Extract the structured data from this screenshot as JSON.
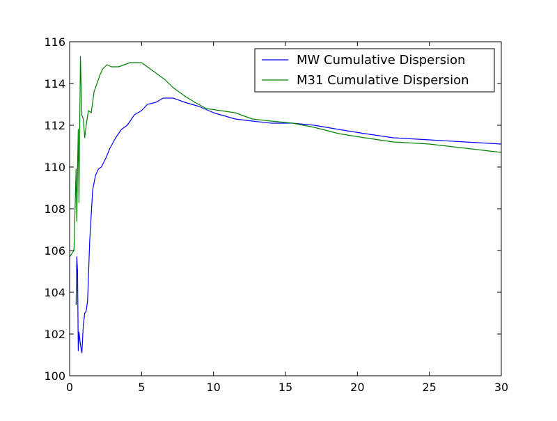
{
  "chart_data": {
    "type": "line",
    "title": "",
    "xlabel": "",
    "ylabel": "",
    "xlim": [
      0,
      30
    ],
    "ylim": [
      100,
      116
    ],
    "xticks": [
      0,
      5,
      10,
      15,
      20,
      25,
      30
    ],
    "yticks": [
      100,
      102,
      104,
      106,
      108,
      110,
      112,
      114,
      116
    ],
    "grid": false,
    "legend_position": "top-right",
    "series": [
      {
        "name": "MW Cumulative Dispersion",
        "color": "#0000ff",
        "x": [
          0.45,
          0.5,
          0.55,
          0.6,
          0.65,
          0.75,
          0.85,
          0.95,
          1.05,
          1.15,
          1.25,
          1.4,
          1.6,
          1.8,
          2.0,
          2.2,
          2.5,
          2.8,
          3.2,
          3.6,
          4.0,
          4.5,
          5.0,
          5.4,
          6.0,
          6.5,
          7.2,
          8.0,
          9.0,
          10.0,
          10.5,
          11.5,
          12.7,
          14.0,
          15.5,
          17.0,
          18.7,
          20.5,
          22.5,
          25.0,
          27.5,
          30.0
        ],
        "y": [
          103.4,
          105.7,
          105.0,
          101.2,
          102.1,
          101.5,
          101.1,
          102.4,
          103.0,
          103.1,
          103.6,
          106.5,
          108.9,
          109.6,
          109.9,
          110.0,
          110.4,
          110.9,
          111.4,
          111.8,
          112.0,
          112.5,
          112.7,
          113.0,
          113.1,
          113.3,
          113.3,
          113.1,
          112.9,
          112.6,
          112.5,
          112.3,
          112.2,
          112.1,
          112.1,
          112.0,
          111.8,
          111.6,
          111.4,
          111.3,
          111.2,
          111.1
        ]
      },
      {
        "name": "M31 Cumulative Dispersion",
        "color": "#008000",
        "x": [
          0.0,
          0.3,
          0.45,
          0.5,
          0.55,
          0.6,
          0.65,
          0.75,
          0.85,
          0.95,
          1.05,
          1.15,
          1.3,
          1.5,
          1.7,
          1.9,
          2.1,
          2.3,
          2.6,
          2.9,
          3.4,
          3.8,
          4.2,
          4.6,
          5.0,
          5.4,
          6.0,
          6.6,
          7.2,
          8.0,
          8.7,
          9.5,
          10.5,
          11.5,
          12.7,
          14.0,
          15.5,
          17.0,
          18.7,
          20.5,
          22.5,
          25.0,
          27.5,
          30.0
        ],
        "y": [
          105.7,
          106.0,
          109.9,
          107.4,
          110.0,
          111.8,
          108.3,
          115.3,
          112.5,
          112.3,
          111.4,
          112.0,
          112.7,
          112.6,
          113.6,
          114.0,
          114.4,
          114.7,
          114.9,
          114.8,
          114.8,
          114.9,
          115.0,
          115.0,
          115.0,
          114.8,
          114.5,
          114.2,
          113.8,
          113.4,
          113.1,
          112.8,
          112.7,
          112.6,
          112.3,
          112.2,
          112.1,
          111.9,
          111.6,
          111.4,
          111.2,
          111.1,
          110.9,
          110.7
        ]
      }
    ]
  }
}
